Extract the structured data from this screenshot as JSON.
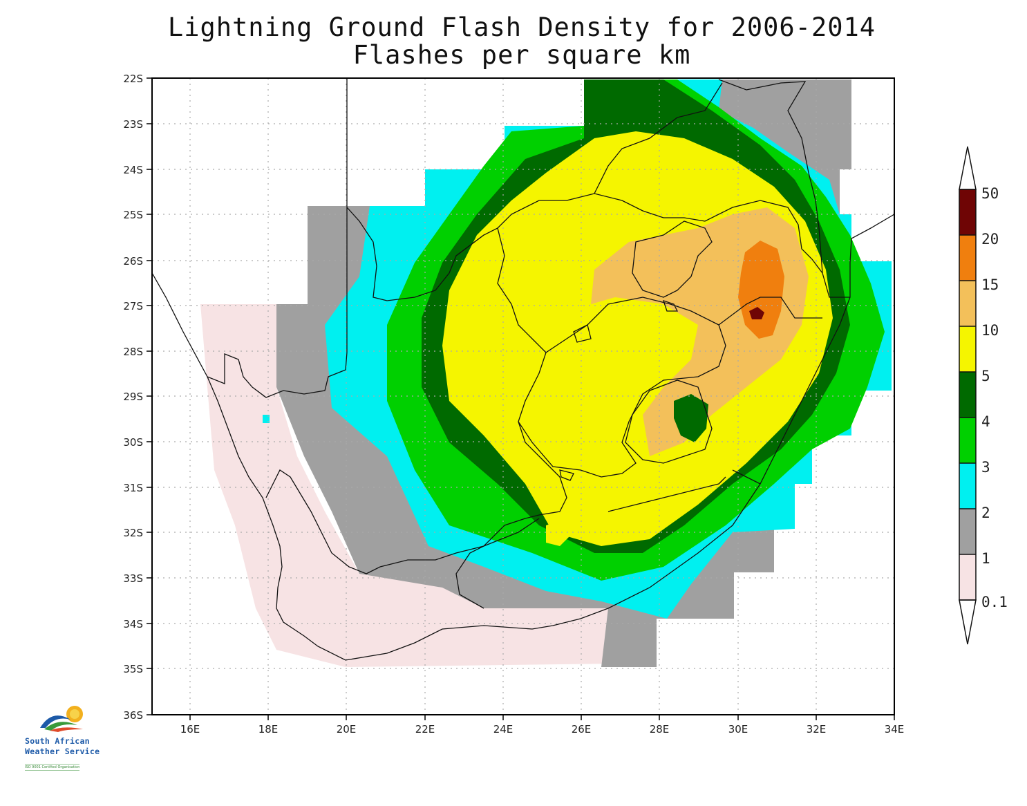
{
  "title": "Lightning Ground Flash Density for 2006-2014",
  "subtitle": "Flashes per square km",
  "map": {
    "lon_range": [
      15,
      34
    ],
    "lat_range": [
      -36,
      -22
    ],
    "lat_tick_labels": [
      "22S",
      "23S",
      "24S",
      "25S",
      "26S",
      "27S",
      "28S",
      "29S",
      "30S",
      "31S",
      "32S",
      "33S",
      "34S",
      "35S",
      "36S"
    ],
    "lon_tick_labels": [
      "16E",
      "18E",
      "20E",
      "22E",
      "24E",
      "26E",
      "28E",
      "30E",
      "32E",
      "34E"
    ],
    "grid": "dotted"
  },
  "colorbar": {
    "labels": [
      "0.1",
      "1",
      "2",
      "3",
      "4",
      "5",
      "10",
      "15",
      "20",
      "50"
    ],
    "colors": [
      "#f7e3e4",
      "#a0a0a0",
      "#00f0f0",
      "#00d000",
      "#006a00",
      "#f5f500",
      "#f3c05a",
      "#f07f0e",
      "#6f0505"
    ]
  },
  "logo": {
    "line1": "South African",
    "line2": "Weather Service",
    "tagline": "ISO 9001 Certified Organisation"
  }
}
